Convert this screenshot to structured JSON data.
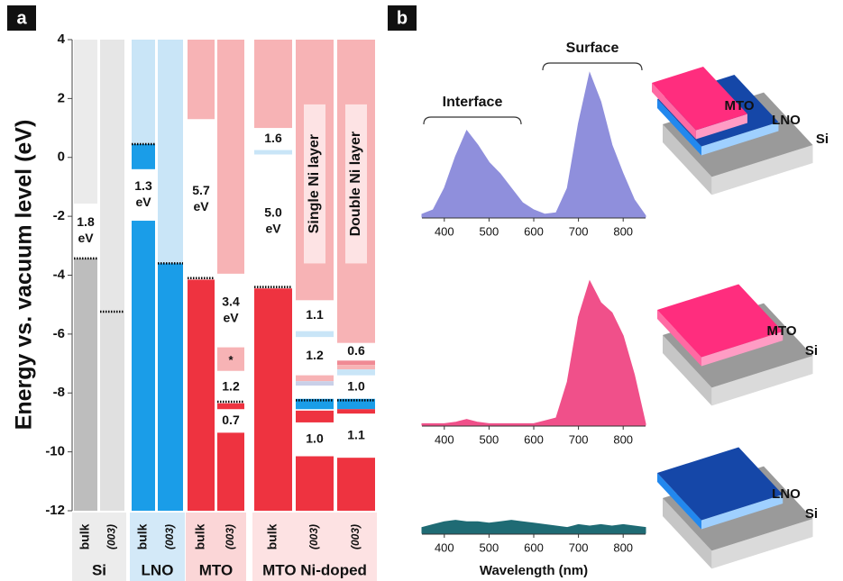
{
  "chart_data": [
    {
      "type": "band-diagram",
      "panel": "a",
      "ylabel": "Energy vs. vacuum level (eV)",
      "ylim": [
        -12,
        4
      ],
      "yticks": [
        4,
        2,
        0,
        -2,
        -4,
        -6,
        -8,
        -10,
        -12
      ],
      "groups": [
        {
          "name": "Si",
          "color": "#ececec",
          "columns": [
            {
              "label": "bulk",
              "fermi": -3.43,
              "bands": [
                {
                  "top": 4,
                  "bottom": -1.57,
                  "color": "#ebebeb"
                },
                {
                  "top": -3.43,
                  "bottom": -12,
                  "color": "#bdbdbd"
                }
              ],
              "gaps": [
                [
                  "1.8",
                  "eV"
                ]
              ]
            },
            {
              "label": "(003)",
              "fermi": -5.24,
              "bands": [
                {
                  "top": 4,
                  "bottom": -5.24,
                  "color": "#e6e6e6"
                },
                {
                  "top": -5.24,
                  "bottom": -12,
                  "color": "#e0e0e0"
                }
              ],
              "gaps": [
                null
              ]
            }
          ]
        },
        {
          "name": "LNO",
          "color": "#d3e9f8",
          "columns": [
            {
              "label": "bulk",
              "fermi": 0.45,
              "bands": [
                {
                  "top": 4,
                  "bottom": 0.45,
                  "color": "#c9e5f7"
                },
                {
                  "top": 0.45,
                  "bottom": -0.4,
                  "color": "#1a9de8"
                },
                {
                  "top": -2.15,
                  "bottom": -12,
                  "color": "#1a9de8"
                }
              ],
              "gaps": [
                null,
                [
                  "1.3",
                  "eV"
                ]
              ]
            },
            {
              "label": "(003)",
              "fermi": -3.6,
              "bands": [
                {
                  "top": 4,
                  "bottom": -3.6,
                  "color": "#c9e5f7"
                },
                {
                  "top": -3.6,
                  "bottom": -12,
                  "color": "#1a9de8"
                }
              ],
              "gaps": [
                null
              ]
            }
          ]
        },
        {
          "name": "MTO",
          "color": "#fbd6d7",
          "columns": [
            {
              "label": "bulk",
              "fermi": -4.1,
              "bands": [
                {
                  "top": 4,
                  "bottom": 1.3,
                  "color": "#f7b3b5"
                },
                {
                  "top": -4.15,
                  "bottom": -12,
                  "color": "#ee3340"
                }
              ],
              "gaps": [
                [
                  "5.7",
                  "eV"
                ]
              ]
            },
            {
              "label": "(003)",
              "fermi": -8.3,
              "bands": [
                {
                  "top": 4,
                  "bottom": -3.95,
                  "color": "#f7b3b5"
                },
                {
                  "top": -6.45,
                  "bottom": -7.25,
                  "color": "#f7b3b5",
                  "label": "*"
                },
                {
                  "top": -8.35,
                  "bottom": -8.55,
                  "color": "#ee3340"
                },
                {
                  "top": -9.35,
                  "bottom": -12,
                  "color": "#ee3340"
                }
              ],
              "gaps": [
                [
                  "3.4",
                  "eV"
                ],
                [
                  "1.2"
                ],
                [
                  "0.7"
                ]
              ]
            }
          ]
        },
        {
          "name": "MTO Ni-doped",
          "color": "#fde2e3",
          "columns": [
            {
              "label": "bulk",
              "fermi": -4.4,
              "bands": [
                {
                  "top": 4,
                  "bottom": 1.0,
                  "color": "#f7b3b5"
                },
                {
                  "top": 0.25,
                  "bottom": 0.1,
                  "color": "#c9e5f7"
                },
                {
                  "top": -4.45,
                  "bottom": -12,
                  "color": "#ee3340"
                }
              ],
              "gaps": [
                [
                  "1.6"
                ],
                [
                  "5.0",
                  "eV"
                ]
              ]
            },
            {
              "label": "(003)",
              "note": "Single Ni layer",
              "fermi": -8.25,
              "bands": [
                {
                  "top": 4,
                  "bottom": -4.85,
                  "color": "#f7b3b5"
                },
                {
                  "top": -5.9,
                  "bottom": -6.1,
                  "color": "#c9e5f7"
                },
                {
                  "top": -7.4,
                  "bottom": -7.6,
                  "color": "#f7b3b5"
                },
                {
                  "top": -7.6,
                  "bottom": -7.75,
                  "color": "#c9d0e8"
                },
                {
                  "top": -8.2,
                  "bottom": -8.55,
                  "color": "#1a9de8"
                },
                {
                  "top": -8.6,
                  "bottom": -9.0,
                  "color": "#ee3340"
                },
                {
                  "top": -10.15,
                  "bottom": -12,
                  "color": "#ee3340"
                }
              ],
              "gaps": [
                [
                  "1.1"
                ],
                [
                  "1.2"
                ],
                null,
                null,
                null,
                [
                  "1.0"
                ]
              ]
            },
            {
              "label": "(003)",
              "note": "Double Ni layer",
              "fermi": -8.25,
              "bands": [
                {
                  "top": 4,
                  "bottom": -6.3,
                  "color": "#f7b3b5"
                },
                {
                  "top": -6.9,
                  "bottom": -7.05,
                  "color": "#f08a94"
                },
                {
                  "top": -7.05,
                  "bottom": -7.2,
                  "color": "#f7b3b5"
                },
                {
                  "top": -7.2,
                  "bottom": -7.4,
                  "color": "#c9e5f7"
                },
                {
                  "top": -8.2,
                  "bottom": -8.55,
                  "color": "#1a9de8"
                },
                {
                  "top": -8.55,
                  "bottom": -8.7,
                  "color": "#ee3340"
                },
                {
                  "top": -10.2,
                  "bottom": -12,
                  "color": "#ee3340"
                }
              ],
              "gaps": [
                [
                  "0.6"
                ],
                null,
                null,
                [
                  "1.0"
                ],
                null,
                [
                  "1.1"
                ]
              ]
            }
          ]
        }
      ]
    },
    {
      "type": "area",
      "panel": "b",
      "xlabel": "Wavelength (nm)",
      "xlim": [
        350,
        850
      ],
      "xticks": [
        400,
        500,
        600,
        700,
        800
      ],
      "ylim": [
        0,
        1
      ],
      "annotations": [
        "Interface",
        "Surface"
      ],
      "x": [
        350,
        375,
        400,
        425,
        450,
        475,
        500,
        525,
        550,
        575,
        600,
        625,
        650,
        675,
        700,
        725,
        750,
        775,
        800,
        825,
        850
      ],
      "series": [
        {
          "color": "#8f8fdc",
          "values": [
            0.02,
            0.05,
            0.2,
            0.42,
            0.6,
            0.5,
            0.38,
            0.3,
            0.2,
            0.1,
            0.05,
            0.02,
            0.03,
            0.2,
            0.65,
            1.0,
            0.8,
            0.5,
            0.3,
            0.12,
            0.01
          ],
          "layers": [
            "MTO",
            "LNO",
            "Si"
          ]
        },
        {
          "color": "#f0508a",
          "values": [
            0.01,
            0.01,
            0.01,
            0.02,
            0.04,
            0.02,
            0.01,
            0.01,
            0.01,
            0.01,
            0.01,
            0.03,
            0.05,
            0.3,
            0.75,
            1.0,
            0.85,
            0.78,
            0.62,
            0.35,
            0.01
          ],
          "layers": [
            "MTO",
            "Si"
          ]
        },
        {
          "color": "#1f6b74",
          "values": [
            0.04,
            0.06,
            0.08,
            0.09,
            0.08,
            0.08,
            0.07,
            0.08,
            0.09,
            0.08,
            0.07,
            0.06,
            0.05,
            0.04,
            0.06,
            0.05,
            0.06,
            0.05,
            0.06,
            0.05,
            0.04
          ],
          "layers": [
            "LNO",
            "Si"
          ]
        }
      ]
    }
  ]
}
